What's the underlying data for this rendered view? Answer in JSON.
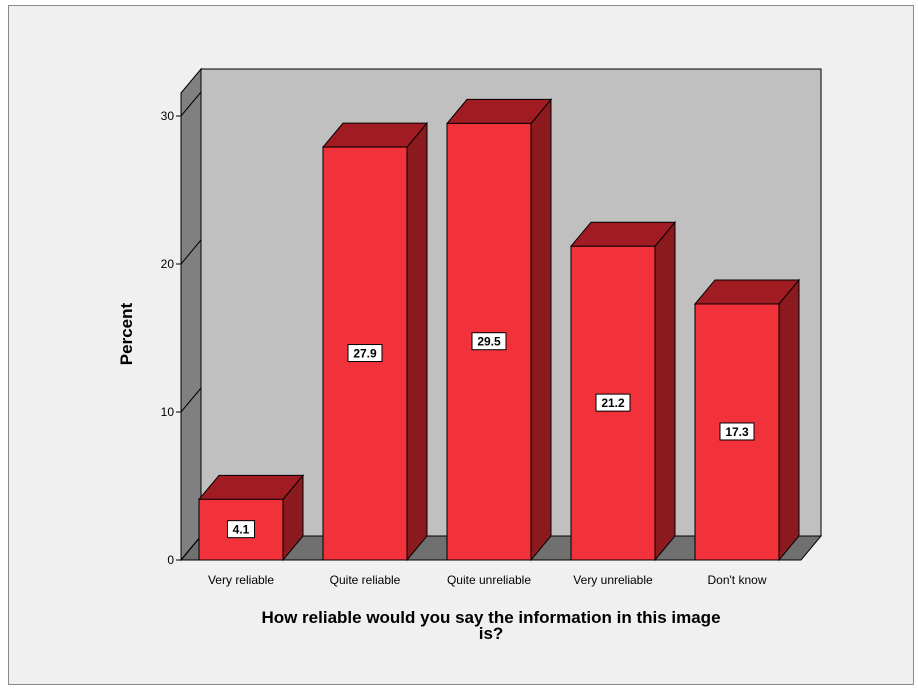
{
  "chart_data": {
    "type": "bar",
    "style": "3d",
    "categories": [
      "Very reliable",
      "Quite reliable",
      "Quite unreliable",
      "Very unreliable",
      "Don't know"
    ],
    "values": [
      4.1,
      27.9,
      29.5,
      21.2,
      17.3
    ],
    "data_labels": [
      "4.1",
      "27.9",
      "29.5",
      "21.2",
      "17.3"
    ],
    "xlabel": "How reliable would you say the information in this image is?",
    "xlabel_lines": [
      "How reliable would you say the information in this image",
      "is?"
    ],
    "ylabel": "Percent",
    "ylim": [
      0,
      30
    ],
    "yticks": [
      0,
      10,
      20,
      30
    ],
    "ytick_labels": [
      "0",
      "10",
      "20",
      "30"
    ],
    "grid": false,
    "legend": "none"
  },
  "colors": {
    "bar_front": "#f2323b",
    "bar_top": "#a01c22",
    "bar_side": "#8b1a1f",
    "back_wall": "#c0c0c0",
    "floor": "#707070",
    "left_wall": "#808080",
    "background": "#f0f0f0"
  }
}
